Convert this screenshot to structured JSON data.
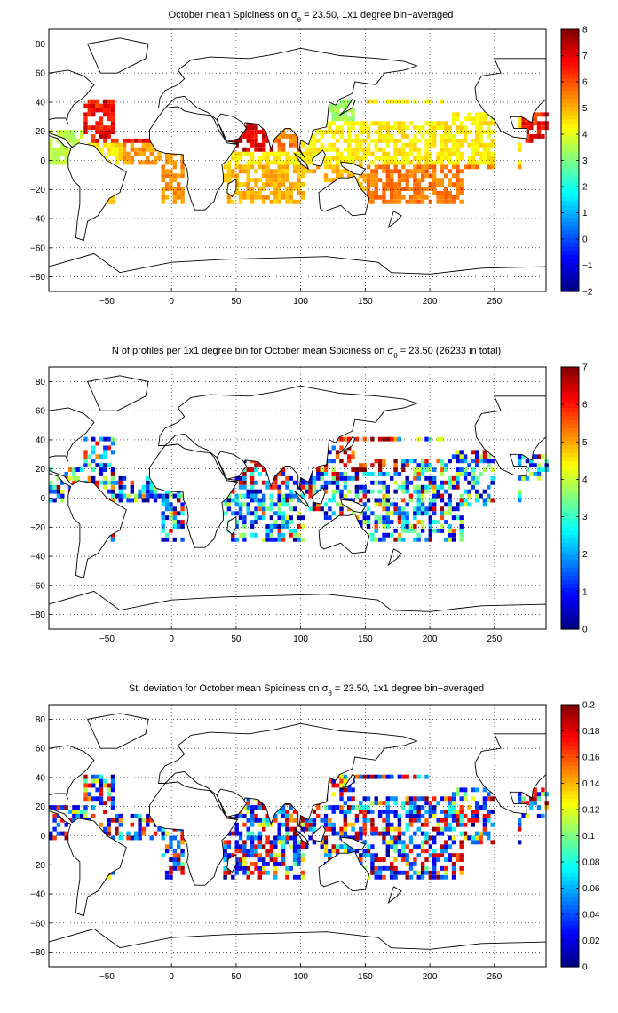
{
  "panels": [
    {
      "title": "October mean Spiciness on σθ = 23.50, 1x1 degree bin−averaged",
      "title_pre": "October mean Spiciness on σ",
      "title_sub": "θ",
      "title_post": " = 23.50, 1x1 degree bin−averaged",
      "colorbar_ticks": [
        "8",
        "7",
        "6",
        "5",
        "4",
        "3",
        "2",
        "1",
        "0",
        "−1",
        "−2"
      ],
      "variable": "spiciness"
    },
    {
      "title": "N of profiles per 1x1 degree bin for October mean Spiciness on σθ = 23.50 (26233 in total)",
      "title_pre": "N of profiles per 1x1 degree bin for October mean Spiciness on σ",
      "title_sub": "θ",
      "title_post": " = 23.50 (26233 in total)",
      "colorbar_ticks": [
        "7",
        "6",
        "5",
        "4",
        "3",
        "2",
        "1",
        "0"
      ],
      "variable": "count"
    },
    {
      "title": "St. deviation for October mean Spiciness on σθ = 23.50, 1x1 degree bin−averaged",
      "title_pre": "St. deviation for October mean Spiciness on σ",
      "title_sub": "θ",
      "title_post": " = 23.50, 1x1 degree bin−averaged",
      "colorbar_ticks": [
        "0.2",
        "0.18",
        "0.16",
        "0.14",
        "0.12",
        "0.1",
        "0.08",
        "0.06",
        "0.04",
        "0.02",
        "0"
      ],
      "variable": "stdev"
    }
  ],
  "axes": {
    "x_ticks": [
      "−50",
      "0",
      "50",
      "100",
      "150",
      "200",
      "250"
    ],
    "y_ticks": [
      "80",
      "60",
      "40",
      "20",
      "0",
      "−20",
      "−40",
      "−60",
      "−80"
    ],
    "x_range": [
      -95,
      290
    ],
    "y_range": [
      -90,
      90
    ],
    "grid": "dotted"
  },
  "colormap": "jet"
}
